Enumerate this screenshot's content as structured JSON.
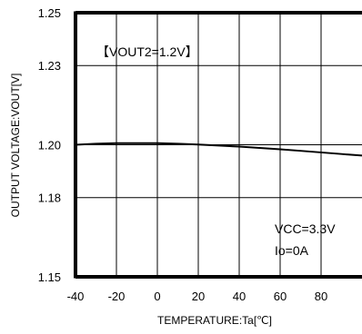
{
  "chart_data": {
    "type": "line",
    "title": "",
    "xlabel": "TEMPERATURE:Ta[℃]",
    "ylabel": "OUTPUT VOLTAGE:VOUT[V]",
    "xlim": [
      -40,
      100
    ],
    "ylim": [
      1.15,
      1.25
    ],
    "x_ticks": [
      "-40",
      "-20",
      "0",
      "20",
      "40",
      "60",
      "80"
    ],
    "y_ticks": [
      "1.25",
      "1.23",
      "1.20",
      "1.18",
      "1.15"
    ],
    "grid": true,
    "series": [
      {
        "x": [
          -40,
          -30,
          -20,
          -10,
          0,
          10,
          20,
          30,
          40,
          50,
          60,
          70,
          80,
          90,
          100
        ],
        "values": [
          1.2,
          1.2004,
          1.2006,
          1.2006,
          1.2006,
          1.2004,
          1.2001,
          1.1997,
          1.1993,
          1.1988,
          1.1983,
          1.1977,
          1.1971,
          1.1965,
          1.1959
        ]
      }
    ],
    "annotations": {
      "condition_label": "【VOUT2=1.2V】",
      "vcc_label": "VCC=3.3V",
      "io_label": "Io=0A"
    },
    "line_color": "#000000",
    "grid_color": "#000000"
  }
}
